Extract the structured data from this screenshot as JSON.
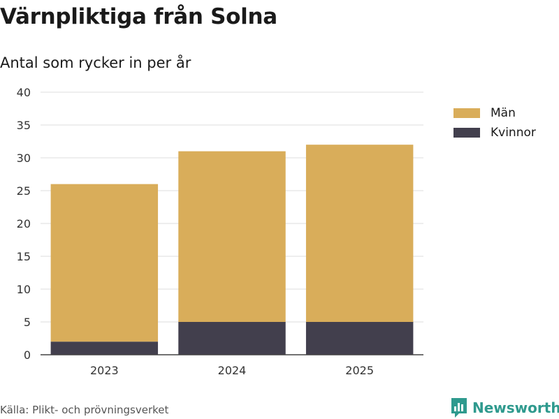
{
  "header": {
    "title": "Värnpliktiga från Solna",
    "subtitle": "Antal som rycker in per år"
  },
  "footer": {
    "source": "Källa: Plikt- och prövningsverket",
    "brand": "Newsworthy"
  },
  "colors": {
    "men": "#d9ad5a",
    "women": "#423f4d",
    "grid": "#dddddd",
    "brand": "#2f9a8e"
  },
  "chart_data": {
    "type": "bar",
    "stacked": true,
    "title": "Värnpliktiga från Solna",
    "subtitle": "Antal som rycker in per år",
    "categories": [
      "2023",
      "2024",
      "2025"
    ],
    "series": [
      {
        "name": "Kvinnor",
        "values": [
          2,
          5,
          5
        ]
      },
      {
        "name": "Män",
        "values": [
          24,
          26,
          27
        ]
      }
    ],
    "legend": [
      "Män",
      "Kvinnor"
    ],
    "ylim": [
      0,
      40
    ],
    "yticks": [
      0,
      5,
      10,
      15,
      20,
      25,
      30,
      35,
      40
    ],
    "xlabel": "",
    "ylabel": "",
    "grid": true,
    "legend_position": "top-right"
  }
}
